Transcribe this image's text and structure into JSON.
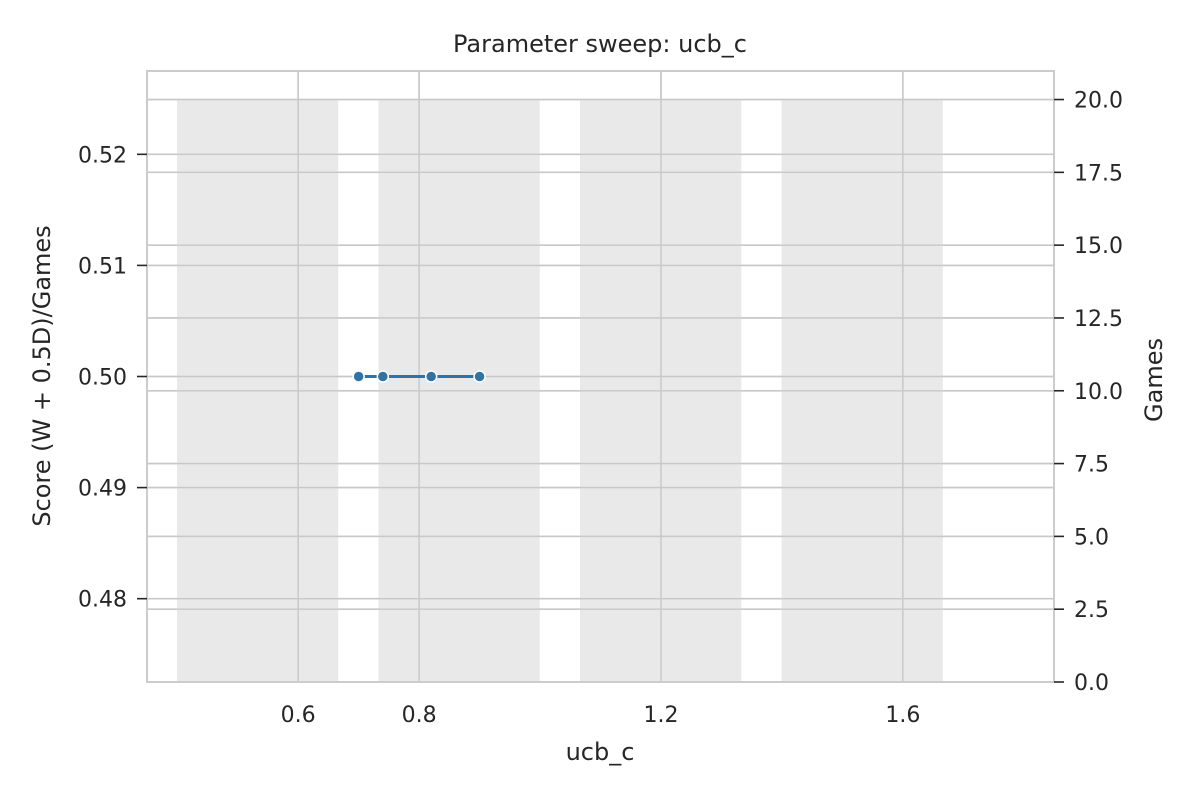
{
  "chart_data": {
    "type": "bar",
    "title": "Parameter sweep: ucb_c",
    "xlabel": "ucb_c",
    "ylabel_left": "Score (W + 0.5D)/Games",
    "ylabel_right": "Games",
    "categories": [
      "0.6",
      "0.8",
      "1.2",
      "1.6"
    ],
    "bar_series": {
      "name": "Games",
      "axis": "right",
      "values": [
        20,
        20,
        20,
        20
      ],
      "color": "#e5e5e5"
    },
    "line_series": {
      "name": "Score",
      "axis": "left",
      "x": [
        0.7,
        0.74,
        0.82,
        0.9
      ],
      "values": [
        0.5,
        0.5,
        0.5,
        0.5
      ],
      "color": "#2f74a8"
    },
    "xlim": [
      0.35,
      1.85
    ],
    "ylim_left": [
      0.4725,
      0.5275
    ],
    "ylim_right": [
      0,
      20.98
    ],
    "xticks": [
      0.6,
      0.8,
      1.2,
      1.6
    ],
    "xtick_labels": [
      "0.6",
      "0.8",
      "1.2",
      "1.6"
    ],
    "yticks_left": [
      0.48,
      0.49,
      0.5,
      0.51,
      0.52
    ],
    "ytick_labels_left": [
      "0.48",
      "0.49",
      "0.50",
      "0.51",
      "0.52"
    ],
    "yticks_right": [
      0,
      2.5,
      5,
      7.5,
      10,
      12.5,
      15,
      17.5,
      20
    ],
    "ytick_labels_right": [
      "0.0",
      "2.5",
      "5.0",
      "7.5",
      "10.0",
      "12.5",
      "15.0",
      "17.5",
      "20.0"
    ],
    "grid": true,
    "colors": {
      "left_label": "#2f7fb8",
      "grid": "#c8c8c8",
      "spine": "#cccccc"
    }
  }
}
